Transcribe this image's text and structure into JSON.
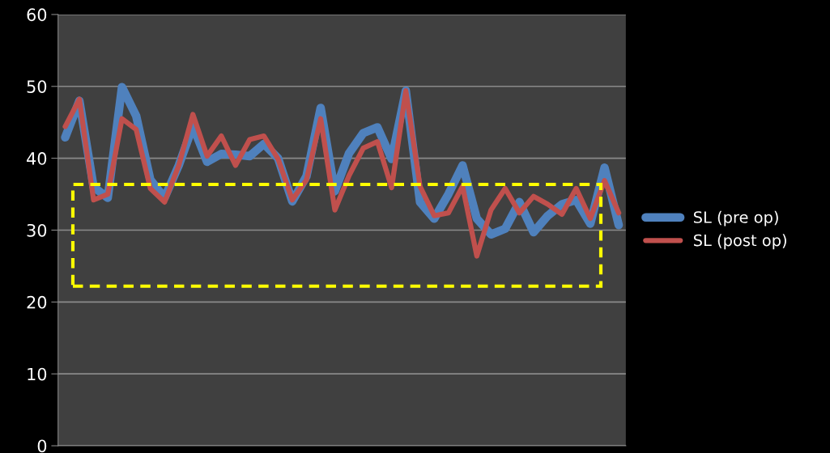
{
  "chart_data": {
    "type": "line",
    "categories": [
      null,
      null,
      null,
      null,
      null,
      null,
      null,
      null,
      null,
      null,
      null,
      null,
      null,
      null,
      null,
      null,
      null,
      null,
      null,
      null,
      null,
      null,
      null,
      null,
      null,
      null,
      null,
      null,
      null,
      null,
      null,
      null,
      null,
      null,
      null,
      null,
      null,
      null,
      null,
      null
    ],
    "series": [
      {
        "name": "SL (pre op)",
        "color": "#4f81bd",
        "values": [
          42.9,
          48,
          36,
          34.5,
          49.9,
          45.9,
          37,
          34.5,
          39,
          44.5,
          39.5,
          40.6,
          40.5,
          40.3,
          42,
          40,
          34,
          37.5,
          47,
          35.4,
          40.7,
          43.5,
          44.3,
          39.9,
          49.4,
          33.9,
          31.6,
          35,
          39,
          31.6,
          29.4,
          30.2,
          33.9,
          29.7,
          32,
          33.6,
          34.2,
          30.9,
          38.7,
          30.7
        ]
      },
      {
        "name": "SL (post op)",
        "color": "#c0504d",
        "values": [
          44.4,
          48.2,
          34.2,
          35,
          45.5,
          44,
          35.8,
          33.9,
          39,
          46.1,
          40.3,
          43.1,
          39,
          42.6,
          43.1,
          39.9,
          34.2,
          37,
          45.5,
          32.8,
          37.6,
          41.4,
          42.3,
          35.9,
          49.4,
          36.1,
          32,
          32.4,
          36.1,
          26.4,
          32.8,
          35.8,
          32.4,
          34.7,
          33.6,
          32.2,
          35.8,
          31.6,
          36.9,
          32.4
        ]
      }
    ],
    "ylim": [
      0,
      60
    ],
    "yticks": [
      0,
      10,
      20,
      30,
      40,
      50,
      60
    ],
    "grid": "y",
    "legend": "right",
    "marker": "none",
    "line_style": "solid"
  }
}
